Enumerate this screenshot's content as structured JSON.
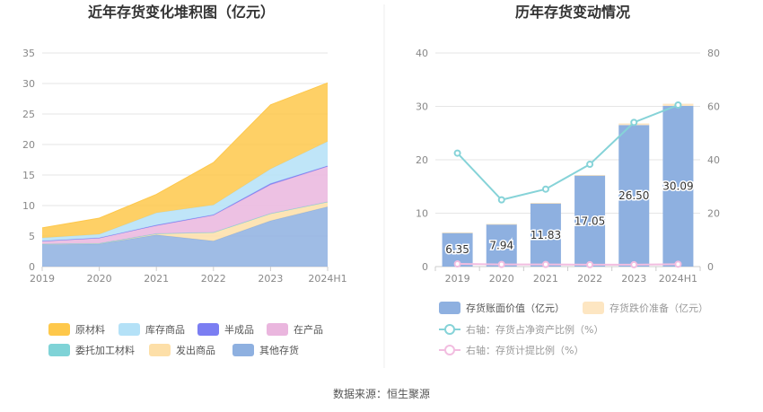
{
  "source_label": "数据来源：恒生聚源",
  "chart_data": [
    {
      "type": "area",
      "title": "近年存货变化堆积图（亿元）",
      "x": [
        "2019",
        "2020",
        "2021",
        "2022",
        "2023",
        "2024H1"
      ],
      "ylim": [
        0,
        35
      ],
      "yticks": [
        0,
        5,
        10,
        15,
        20,
        25,
        30,
        35
      ],
      "stacked": true,
      "legend_position": "bottom",
      "series": [
        {
          "name": "其他存货",
          "color": "#8eb0e0",
          "values": [
            3.6,
            3.7,
            5.2,
            4.2,
            7.5,
            9.8
          ]
        },
        {
          "name": "发出商品",
          "color": "#fddfa8",
          "values": [
            0.1,
            0.1,
            0.2,
            1.4,
            1.2,
            0.8
          ]
        },
        {
          "name": "委托加工材料",
          "color": "#7fd3d7",
          "values": [
            0.0,
            0.0,
            0.0,
            0.0,
            0.0,
            0.0
          ]
        },
        {
          "name": "在产品",
          "color": "#eab6de",
          "values": [
            0.5,
            0.9,
            1.3,
            2.8,
            4.7,
            5.8
          ]
        },
        {
          "name": "半成品",
          "color": "#7b7ef2",
          "values": [
            0.0,
            0.0,
            0.1,
            0.1,
            0.2,
            0.1
          ]
        },
        {
          "name": "库存商品",
          "color": "#b4e1f7",
          "values": [
            0.5,
            0.6,
            2.0,
            1.6,
            2.4,
            4.0
          ]
        },
        {
          "name": "原材料",
          "color": "#fec84b",
          "values": [
            1.65,
            2.64,
            3.03,
            6.95,
            10.5,
            9.6
          ]
        }
      ],
      "legend_order": [
        "原材料",
        "库存商品",
        "半成品",
        "在产品",
        "委托加工材料",
        "发出商品",
        "其他存货"
      ]
    },
    {
      "type": "bar",
      "title": "历年存货变动情况",
      "categories": [
        "2019",
        "2020",
        "2021",
        "2022",
        "2023",
        "2024H1"
      ],
      "ylim_left": [
        0,
        40
      ],
      "yticks_left": [
        0,
        10,
        20,
        30,
        40
      ],
      "ylim_right": [
        0,
        80
      ],
      "yticks_right": [
        0,
        20,
        40,
        60,
        80
      ],
      "legend_position": "bottom",
      "series": [
        {
          "name": "存货账面价值（亿元）",
          "type": "bar",
          "axis": "left",
          "color": "#8eb0e0",
          "values": [
            6.35,
            7.94,
            11.83,
            17.05,
            26.5,
            30.09
          ],
          "labels": [
            "6.35",
            "7.94",
            "11.83",
            "17.05",
            "26.50",
            "30.09"
          ]
        },
        {
          "name": "存货跌价准备（亿元）",
          "type": "bar",
          "axis": "left",
          "color": "#fde6c2",
          "values": [
            0.05,
            0.05,
            0.1,
            0.1,
            0.3,
            0.4
          ]
        },
        {
          "name": "右轴：存货占净资产比例（%）",
          "type": "line",
          "axis": "right",
          "color": "#86d3d8",
          "values": [
            42.5,
            25,
            29,
            38.3,
            54,
            60.5
          ]
        },
        {
          "name": "右轴：存货计提比例（%）",
          "type": "line",
          "axis": "right",
          "color": "#f2bde0",
          "values": [
            1.0,
            0.8,
            0.8,
            0.7,
            0.7,
            0.9
          ]
        }
      ]
    }
  ]
}
